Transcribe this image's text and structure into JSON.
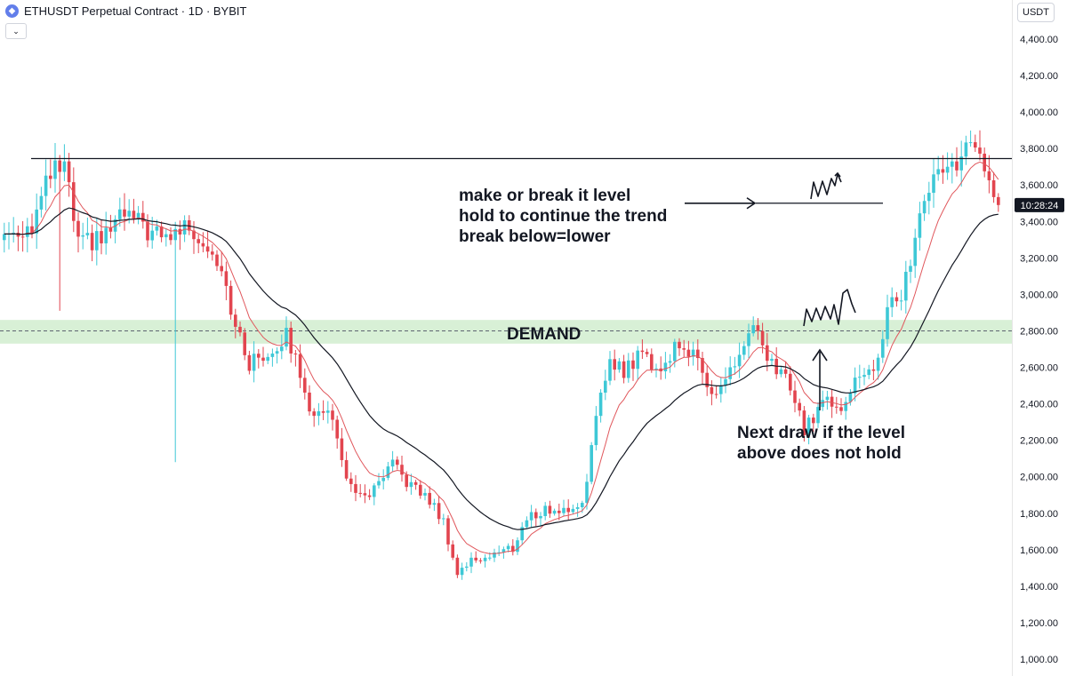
{
  "header": {
    "icon": "ethereum-coin-icon",
    "title": "ETHUSDT Perpetual Contract · 1D · BYBIT"
  },
  "currency": "USDT",
  "countdown": "10:28:24",
  "colors": {
    "up": "#3ec8d6",
    "down": "#e2454f",
    "demand_zone": "#d8f0d6",
    "ema_fast": "#e0575c",
    "ema_slow": "#131722"
  },
  "chart_data": {
    "type": "candlestick",
    "symbol": "ETHUSDT",
    "timeframe": "1D",
    "exchange": "BYBIT",
    "ylim": [
      1000,
      4400
    ],
    "y_ticks": [
      "4,400.00",
      "4,200.00",
      "4,000.00",
      "3,800.00",
      "3,600.00",
      "3,400.00",
      "3,200.00",
      "3,000.00",
      "2,800.00",
      "2,600.00",
      "2,400.00",
      "2,200.00",
      "2,000.00",
      "1,800.00",
      "1,600.00",
      "1,400.00",
      "1,200.00",
      "1,000.00"
    ],
    "current_price": 3490,
    "resistance_level": 3745,
    "make_or_break_level": 3500,
    "demand_zone": {
      "low": 2730,
      "high": 2860,
      "mid": 2800,
      "label": "DEMAND"
    },
    "annotations": {
      "level_note": [
        "make or break it level",
        "hold to continue the trend",
        "break below=lower"
      ],
      "next_draw_note": [
        "Next draw if the level",
        "above does not hold"
      ]
    },
    "price_path": [
      {
        "t": 0,
        "p": 3330
      },
      {
        "t": 6,
        "p": 3380
      },
      {
        "t": 10,
        "p": 3660
      },
      {
        "t": 13,
        "p": 3700
      },
      {
        "t": 16,
        "p": 3270
      },
      {
        "t": 21,
        "p": 3300
      },
      {
        "t": 26,
        "p": 3440
      },
      {
        "t": 34,
        "p": 3300
      },
      {
        "t": 40,
        "p": 3380
      },
      {
        "t": 47,
        "p": 3170
      },
      {
        "t": 50,
        "p": 2810
      },
      {
        "t": 53,
        "p": 2620
      },
      {
        "t": 57,
        "p": 2680
      },
      {
        "t": 61,
        "p": 2770
      },
      {
        "t": 64,
        "p": 2580
      },
      {
        "t": 67,
        "p": 2300
      },
      {
        "t": 70,
        "p": 2400
      },
      {
        "t": 73,
        "p": 2090
      },
      {
        "t": 76,
        "p": 1880
      },
      {
        "t": 80,
        "p": 1920
      },
      {
        "t": 84,
        "p": 2060
      },
      {
        "t": 88,
        "p": 1950
      },
      {
        "t": 92,
        "p": 1870
      },
      {
        "t": 95,
        "p": 1750
      },
      {
        "t": 98,
        "p": 1470
      },
      {
        "t": 101,
        "p": 1540
      },
      {
        "t": 105,
        "p": 1570
      },
      {
        "t": 110,
        "p": 1610
      },
      {
        "t": 113,
        "p": 1770
      },
      {
        "t": 117,
        "p": 1820
      },
      {
        "t": 121,
        "p": 1810
      },
      {
        "t": 125,
        "p": 1860
      },
      {
        "t": 128,
        "p": 2300
      },
      {
        "t": 131,
        "p": 2660
      },
      {
        "t": 134,
        "p": 2580
      },
      {
        "t": 138,
        "p": 2680
      },
      {
        "t": 142,
        "p": 2580
      },
      {
        "t": 146,
        "p": 2750
      },
      {
        "t": 150,
        "p": 2620
      },
      {
        "t": 154,
        "p": 2450
      },
      {
        "t": 158,
        "p": 2620
      },
      {
        "t": 162,
        "p": 2820
      },
      {
        "t": 165,
        "p": 2620
      },
      {
        "t": 169,
        "p": 2560
      },
      {
        "t": 173,
        "p": 2250
      },
      {
        "t": 177,
        "p": 2420
      },
      {
        "t": 181,
        "p": 2400
      },
      {
        "t": 185,
        "p": 2560
      },
      {
        "t": 188,
        "p": 2560
      },
      {
        "t": 191,
        "p": 2900
      },
      {
        "t": 194,
        "p": 3000
      },
      {
        "t": 197,
        "p": 3300
      },
      {
        "t": 200,
        "p": 3600
      },
      {
        "t": 203,
        "p": 3700
      },
      {
        "t": 206,
        "p": 3720
      },
      {
        "t": 209,
        "p": 3810
      },
      {
        "t": 212,
        "p": 3700
      },
      {
        "t": 214,
        "p": 3490
      }
    ],
    "ema_fast": {
      "color": "#e0575c"
    },
    "ema_slow": {
      "color": "#131722"
    }
  }
}
